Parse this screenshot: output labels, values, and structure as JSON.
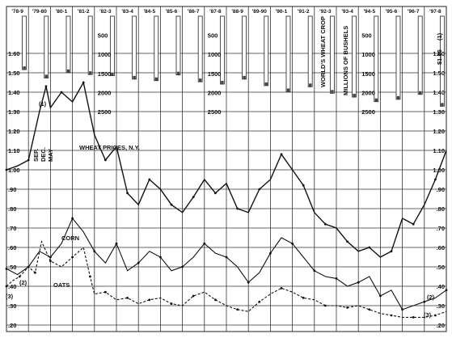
{
  "chart_data": {
    "type": "line",
    "title": "",
    "xlabel": "",
    "ylabel": "",
    "unit": "$",
    "x_categories": [
      "'78-9",
      "'79-80",
      "'80-1",
      "'81-2",
      "'82-3",
      "'83-4",
      "'84-5",
      "'85-6",
      "'86-7",
      "'87-8",
      "'88-9",
      "'89-90",
      "'90-1",
      "'91-2",
      "'92-3",
      "'93-4",
      "'94-5",
      "'95-6",
      "'96-7",
      "'97-8"
    ],
    "y_ticks": [
      ".20",
      ".30",
      ".40",
      ".50",
      ".60",
      ".70",
      ".80",
      ".90",
      "1.00",
      "1.10",
      "1.20",
      "1.30",
      "1.40",
      "1.50",
      "1.60"
    ],
    "ylim": [
      0.2,
      1.65
    ],
    "crop_axis": {
      "label": "MILLIONS OF BUSHELS",
      "title": "WORLD'S WHEAT CROP",
      "ticks": [
        "500",
        "1000",
        "1500",
        "2000",
        "2500"
      ],
      "values": [
        1400,
        1620,
        1480,
        1530,
        1560,
        1650,
        1690,
        1540,
        1720,
        1780,
        1650,
        1820,
        1980,
        1850,
        2020,
        2120,
        2240,
        2180,
        2050,
        2360
      ]
    },
    "series": [
      {
        "name": "WHEAT PRICES, N.Y.",
        "points": [
          [
            0,
            1.0
          ],
          [
            0.5,
            1.02
          ],
          [
            1,
            1.05
          ],
          [
            1.5,
            1.3
          ],
          [
            1.8,
            1.43
          ],
          [
            2,
            1.32
          ],
          [
            2.5,
            1.4
          ],
          [
            3,
            1.35
          ],
          [
            3.5,
            1.45
          ],
          [
            4,
            1.18
          ],
          [
            4.5,
            1.05
          ],
          [
            5,
            1.12
          ],
          [
            5.5,
            0.88
          ],
          [
            6,
            0.82
          ],
          [
            6.5,
            0.95
          ],
          [
            7,
            0.9
          ],
          [
            7.5,
            0.82
          ],
          [
            8,
            0.78
          ],
          [
            8.5,
            0.86
          ],
          [
            9,
            0.95
          ],
          [
            9.5,
            0.88
          ],
          [
            10,
            0.93
          ],
          [
            10.5,
            0.8
          ],
          [
            11,
            0.78
          ],
          [
            11.5,
            0.9
          ],
          [
            12,
            0.95
          ],
          [
            12.5,
            1.08
          ],
          [
            13,
            1.0
          ],
          [
            13.5,
            0.92
          ],
          [
            14,
            0.78
          ],
          [
            14.5,
            0.72
          ],
          [
            15,
            0.7
          ],
          [
            15.5,
            0.63
          ],
          [
            16,
            0.58
          ],
          [
            16.5,
            0.6
          ],
          [
            17,
            0.55
          ],
          [
            17.5,
            0.58
          ],
          [
            18,
            0.75
          ],
          [
            18.5,
            0.72
          ],
          [
            19,
            0.82
          ],
          [
            19.5,
            0.95
          ],
          [
            20,
            1.1
          ]
        ]
      },
      {
        "name": "CORN",
        "points": [
          [
            0,
            0.49
          ],
          [
            0.5,
            0.46
          ],
          [
            1,
            0.5
          ],
          [
            1.5,
            0.58
          ],
          [
            2,
            0.55
          ],
          [
            2.5,
            0.62
          ],
          [
            3,
            0.75
          ],
          [
            3.5,
            0.68
          ],
          [
            4,
            0.58
          ],
          [
            4.5,
            0.52
          ],
          [
            5,
            0.62
          ],
          [
            5.5,
            0.48
          ],
          [
            6,
            0.52
          ],
          [
            6.5,
            0.58
          ],
          [
            7,
            0.55
          ],
          [
            7.5,
            0.48
          ],
          [
            8,
            0.5
          ],
          [
            8.5,
            0.55
          ],
          [
            9,
            0.62
          ],
          [
            9.5,
            0.57
          ],
          [
            10,
            0.55
          ],
          [
            10.5,
            0.5
          ],
          [
            11,
            0.42
          ],
          [
            11.5,
            0.47
          ],
          [
            12,
            0.57
          ],
          [
            12.5,
            0.65
          ],
          [
            13,
            0.62
          ],
          [
            13.5,
            0.55
          ],
          [
            14,
            0.48
          ],
          [
            14.5,
            0.45
          ],
          [
            15,
            0.44
          ],
          [
            15.5,
            0.4
          ],
          [
            16,
            0.42
          ],
          [
            16.5,
            0.45
          ],
          [
            17,
            0.35
          ],
          [
            17.5,
            0.38
          ],
          [
            18,
            0.28
          ],
          [
            18.5,
            0.3
          ],
          [
            19,
            0.32
          ],
          [
            19.5,
            0.34
          ],
          [
            20,
            0.38
          ]
        ]
      },
      {
        "name": "OATS",
        "points": [
          [
            0,
            0.4
          ],
          [
            0.3,
            0.43
          ],
          [
            0.6,
            0.45
          ],
          [
            1,
            0.5
          ],
          [
            1.3,
            0.47
          ],
          [
            1.6,
            0.63
          ],
          [
            2,
            0.53
          ],
          [
            2.5,
            0.5
          ],
          [
            3,
            0.55
          ],
          [
            3.5,
            0.6
          ],
          [
            3.8,
            0.45
          ],
          [
            4,
            0.36
          ],
          [
            4.5,
            0.37
          ],
          [
            5,
            0.33
          ],
          [
            5.5,
            0.34
          ],
          [
            6,
            0.31
          ],
          [
            6.5,
            0.33
          ],
          [
            7,
            0.34
          ],
          [
            7.5,
            0.31
          ],
          [
            8,
            0.3
          ],
          [
            8.5,
            0.35
          ],
          [
            9,
            0.37
          ],
          [
            9.5,
            0.33
          ],
          [
            10,
            0.3
          ],
          [
            10.5,
            0.28
          ],
          [
            11,
            0.27
          ],
          [
            11.5,
            0.32
          ],
          [
            12,
            0.36
          ],
          [
            12.5,
            0.39
          ],
          [
            13,
            0.37
          ],
          [
            13.5,
            0.34
          ],
          [
            14,
            0.33
          ],
          [
            14.5,
            0.3
          ],
          [
            15,
            0.3
          ],
          [
            15.5,
            0.29
          ],
          [
            16,
            0.3
          ],
          [
            16.5,
            0.28
          ],
          [
            17,
            0.26
          ],
          [
            17.5,
            0.25
          ],
          [
            18,
            0.24
          ],
          [
            18.5,
            0.24
          ],
          [
            19,
            0.24
          ],
          [
            19.5,
            0.25
          ],
          [
            20,
            0.27
          ]
        ]
      }
    ],
    "annotations": {
      "wheat_label": "WHEAT PRICES, N.Y.",
      "months": [
        "SEP.",
        "DEC.",
        "MAY"
      ],
      "corn_label": "CORN",
      "oats_label": "OATS",
      "marker_1": "(1)",
      "marker_2": "(2)",
      "marker_3": "(3)",
      "right_label": "$1.85",
      "right_marker": "(1)"
    },
    "grid": true,
    "legend": "none"
  }
}
